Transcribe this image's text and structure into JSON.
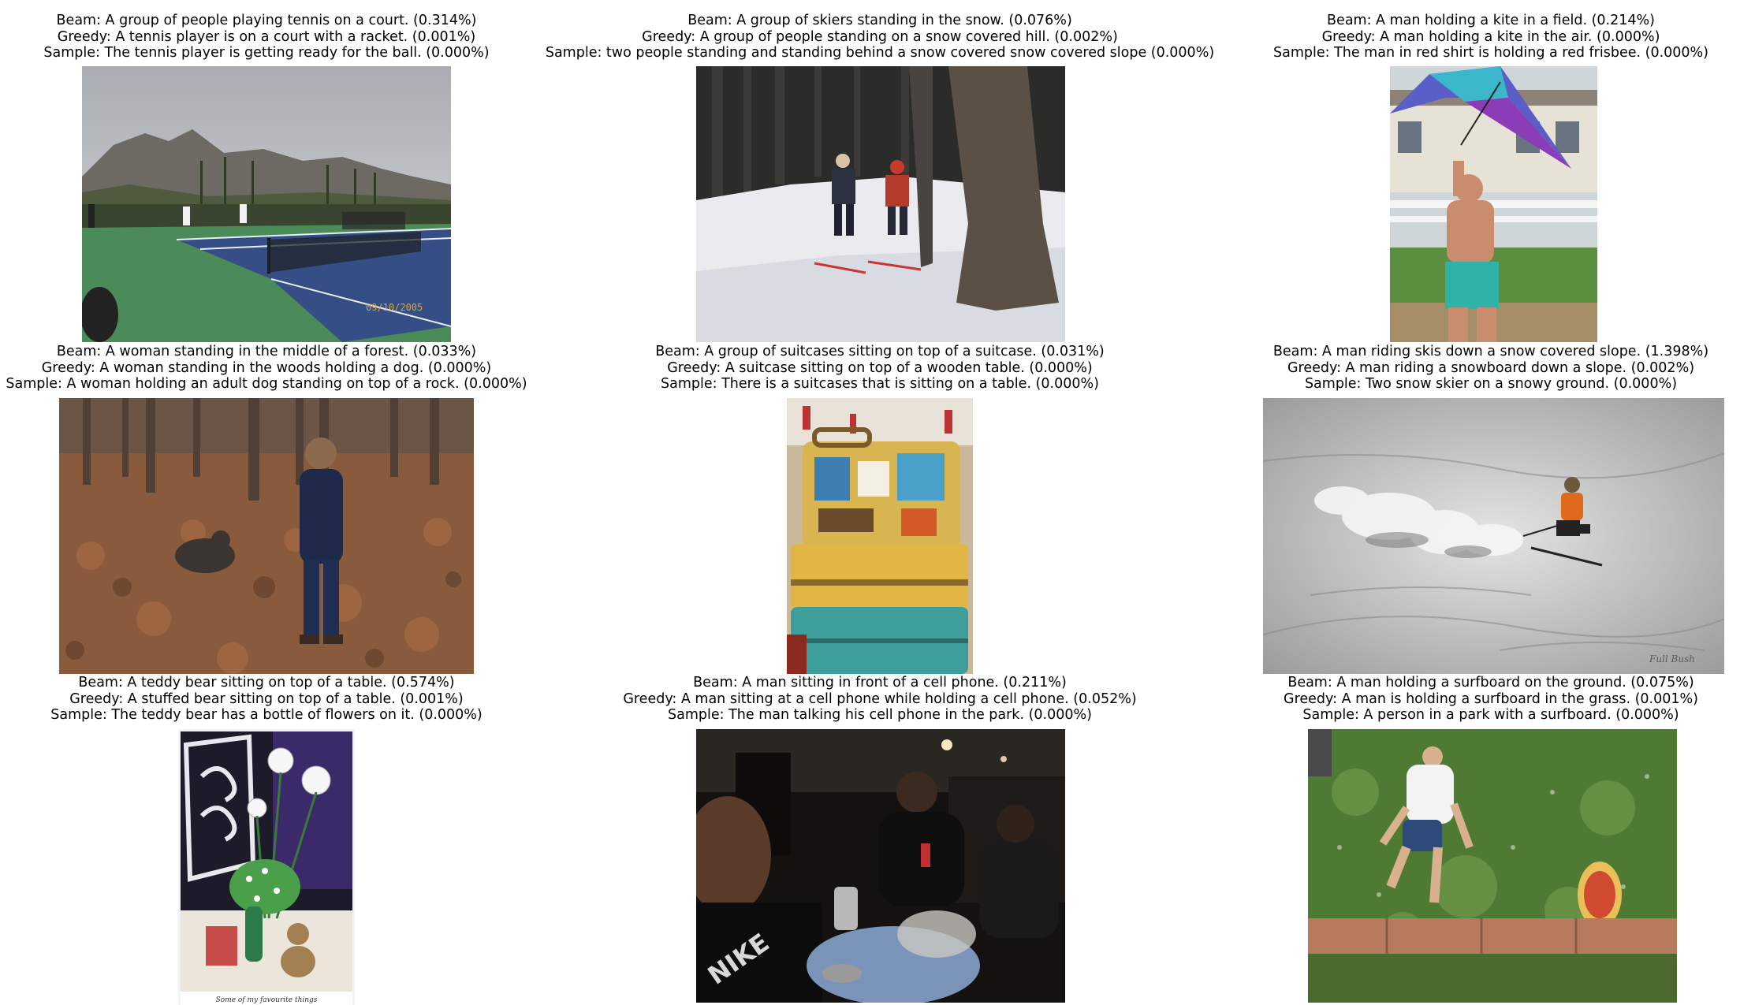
{
  "panels": [
    {
      "beam": "Beam: A group of people playing tennis on a court. (0.314%)",
      "greedy": "Greedy: A tennis player is on a court with a racket. (0.001%)",
      "sample": "Sample: The tennis player is getting ready for the ball.  (0.000%)",
      "image": "tennis-court-photo"
    },
    {
      "beam": "Beam: A group of skiers standing in the snow. (0.076%)",
      "greedy": "Greedy: A group of people standing on a snow covered hill. (0.002%)",
      "sample": "Sample: two people standing and standing behind a snow covered snow covered slope (0.000%)",
      "image": "skiers-forest-photo"
    },
    {
      "beam": "Beam: A man holding a kite in a field. (0.214%)",
      "greedy": "Greedy: A man holding a kite in the air. (0.000%)",
      "sample": "Sample: The man in red shirt is holding a red frisbee. (0.000%)",
      "image": "man-kite-photo"
    },
    {
      "beam": "Beam: A woman standing in the middle of a forest. (0.033%)",
      "greedy": "Greedy: A woman standing in the woods holding a dog. (0.000%)",
      "sample": "Sample: A woman holding an adult dog standing on top of a rock. (0.000%)",
      "image": "woman-dog-forest-photo"
    },
    {
      "beam": "Beam: A group of suitcases sitting on top of a suitcase. (0.031%)",
      "greedy": "Greedy: A suitcase sitting on top of a wooden table. (0.000%)",
      "sample": "Sample: There is a suitcases that is sitting on a table. (0.000%)",
      "image": "suitcases-photo"
    },
    {
      "beam": "Beam: A man riding skis down a snow covered slope. (1.398%)",
      "greedy": "Greedy: A man riding a snowboard down a slope. (0.002%)",
      "sample": "Sample: Two snow skier on a snowy ground. (0.000%)",
      "image": "skier-slope-photo"
    },
    {
      "beam": "Beam: A teddy bear sitting on top of a table. (0.574%)",
      "greedy": "Greedy: A stuffed bear sitting on top of a table. (0.001%)",
      "sample": "Sample: The teddy bear has a bottle of flowers on it. (0.000%)",
      "image": "teddy-flowers-photo",
      "photo_caption": "Some of my favourite things"
    },
    {
      "beam": "Beam: A man sitting in front of a cell phone. (0.211%)",
      "greedy": "Greedy: A man sitting at a cell phone while holding a cell phone. (0.052%)",
      "sample": "Sample: The man talking his cell phone in the park. (0.000%)",
      "image": "men-phone-night-photo"
    },
    {
      "beam": "Beam: A man holding a surfboard on the ground. (0.075%)",
      "greedy": "Greedy: A man is holding a surfboard in the grass. (0.001%)",
      "sample": "Sample: A person in a park with a surfboard. (0.000%)",
      "image": "man-surfboard-grass-photo"
    }
  ]
}
